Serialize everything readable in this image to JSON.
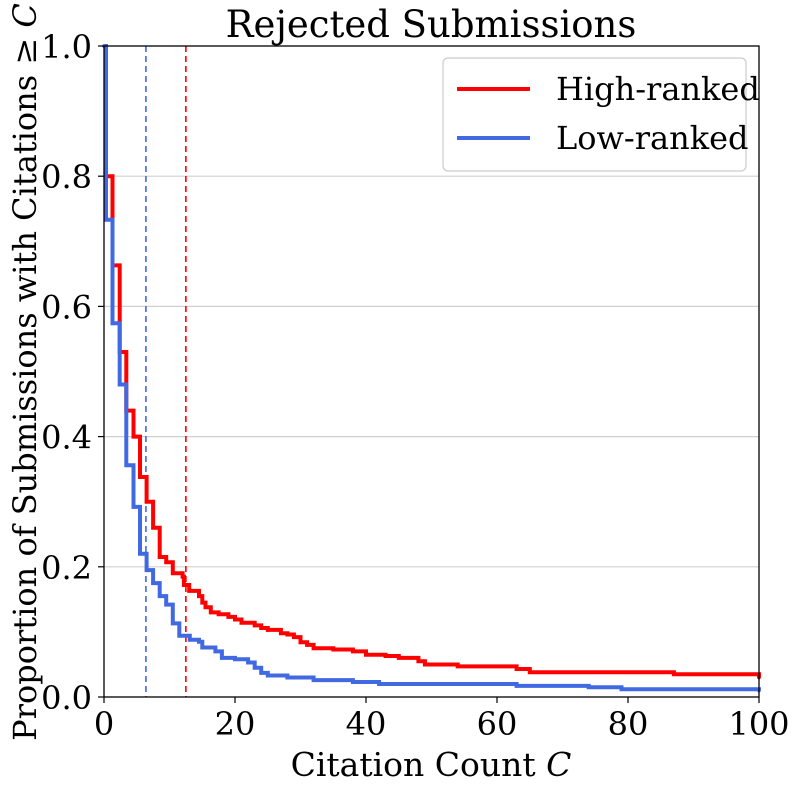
{
  "chart_data": {
    "type": "line",
    "title": "Rejected Submissions",
    "xlabel": "Citation Count ",
    "xlabel_symbol": "C",
    "ylabel": "Proportion of Submissions with Citations ≥ ",
    "ylabel_symbol": "C",
    "xlim": [
      0,
      100
    ],
    "ylim": [
      0,
      1
    ],
    "xticks": [
      0,
      20,
      40,
      60,
      80,
      100
    ],
    "xtick_labels": [
      "0",
      "20",
      "40",
      "60",
      "80",
      "100"
    ],
    "yticks": [
      0,
      0.2,
      0.4,
      0.6,
      0.8,
      1.0
    ],
    "ytick_labels": [
      "0.0",
      "0.2",
      "0.4",
      "0.6",
      "0.8",
      "1.0"
    ],
    "grid": "horizontal",
    "legend_position": "top-right",
    "series": [
      {
        "name": "High-ranked",
        "color": "#ff0000",
        "step": "post",
        "points": [
          [
            0,
            1.0
          ],
          [
            0.3,
            0.8
          ],
          [
            1.2,
            0.8
          ],
          [
            1.3,
            0.663
          ],
          [
            2.3,
            0.663
          ],
          [
            2.4,
            0.53
          ],
          [
            3.3,
            0.53
          ],
          [
            3.4,
            0.44
          ],
          [
            4.4,
            0.44
          ],
          [
            4.5,
            0.4
          ],
          [
            5.4,
            0.4
          ],
          [
            5.5,
            0.338
          ],
          [
            6.4,
            0.338
          ],
          [
            6.5,
            0.3
          ],
          [
            7.4,
            0.3
          ],
          [
            7.5,
            0.26
          ],
          [
            8.4,
            0.26
          ],
          [
            8.5,
            0.215
          ],
          [
            9.4,
            0.215
          ],
          [
            9.5,
            0.207
          ],
          [
            10.4,
            0.207
          ],
          [
            10.5,
            0.19
          ],
          [
            12.0,
            0.185
          ],
          [
            12.2,
            0.172
          ],
          [
            12.8,
            0.172
          ],
          [
            13.0,
            0.163
          ],
          [
            14.5,
            0.155
          ],
          [
            15.0,
            0.145
          ],
          [
            15.5,
            0.138
          ],
          [
            16.3,
            0.13
          ],
          [
            17.5,
            0.127
          ],
          [
            19.0,
            0.123
          ],
          [
            20.0,
            0.119
          ],
          [
            21.0,
            0.114
          ],
          [
            23.0,
            0.11
          ],
          [
            24.0,
            0.106
          ],
          [
            25.0,
            0.103
          ],
          [
            27.0,
            0.098
          ],
          [
            28.0,
            0.096
          ],
          [
            29.0,
            0.092
          ],
          [
            30.0,
            0.084
          ],
          [
            31.0,
            0.08
          ],
          [
            32.0,
            0.075
          ],
          [
            35.0,
            0.073
          ],
          [
            38.0,
            0.07
          ],
          [
            40.0,
            0.065
          ],
          [
            43.0,
            0.063
          ],
          [
            45.0,
            0.06
          ],
          [
            48.0,
            0.055
          ],
          [
            49.0,
            0.05
          ],
          [
            54.0,
            0.047
          ],
          [
            63.0,
            0.043
          ],
          [
            65.0,
            0.038
          ],
          [
            87.0,
            0.035
          ],
          [
            100,
            0.03
          ]
        ]
      },
      {
        "name": "Low-ranked",
        "color": "#4169e1",
        "step": "post",
        "points": [
          [
            0,
            1.0
          ],
          [
            0.3,
            0.733
          ],
          [
            1.2,
            0.733
          ],
          [
            1.3,
            0.574
          ],
          [
            2.3,
            0.574
          ],
          [
            2.4,
            0.48
          ],
          [
            3.3,
            0.48
          ],
          [
            3.4,
            0.356
          ],
          [
            4.4,
            0.356
          ],
          [
            4.5,
            0.292
          ],
          [
            5.4,
            0.292
          ],
          [
            5.5,
            0.22
          ],
          [
            6.4,
            0.22
          ],
          [
            6.5,
            0.195
          ],
          [
            7.4,
            0.195
          ],
          [
            7.5,
            0.175
          ],
          [
            8.4,
            0.175
          ],
          [
            8.5,
            0.155
          ],
          [
            9.4,
            0.155
          ],
          [
            9.5,
            0.142
          ],
          [
            10.4,
            0.142
          ],
          [
            10.5,
            0.113
          ],
          [
            11.4,
            0.113
          ],
          [
            11.5,
            0.094
          ],
          [
            13.0,
            0.094
          ],
          [
            13.1,
            0.088
          ],
          [
            14.5,
            0.085
          ],
          [
            15.0,
            0.076
          ],
          [
            17.0,
            0.07
          ],
          [
            18.0,
            0.06
          ],
          [
            20.0,
            0.058
          ],
          [
            22.0,
            0.053
          ],
          [
            23.0,
            0.045
          ],
          [
            24.0,
            0.037
          ],
          [
            25.0,
            0.033
          ],
          [
            28.0,
            0.03
          ],
          [
            32.0,
            0.026
          ],
          [
            38.0,
            0.023
          ],
          [
            42.0,
            0.02
          ],
          [
            63.0,
            0.017
          ],
          [
            74.0,
            0.015
          ],
          [
            79.0,
            0.012
          ],
          [
            100,
            0.01
          ]
        ]
      }
    ],
    "reference_lines": [
      {
        "name": "Low-ranked mean",
        "x": 6.4,
        "color": "#4169e1",
        "style": "dashed"
      },
      {
        "name": "High-ranked mean",
        "x": 12.5,
        "color": "#ff0000",
        "style": "dashed"
      }
    ]
  }
}
